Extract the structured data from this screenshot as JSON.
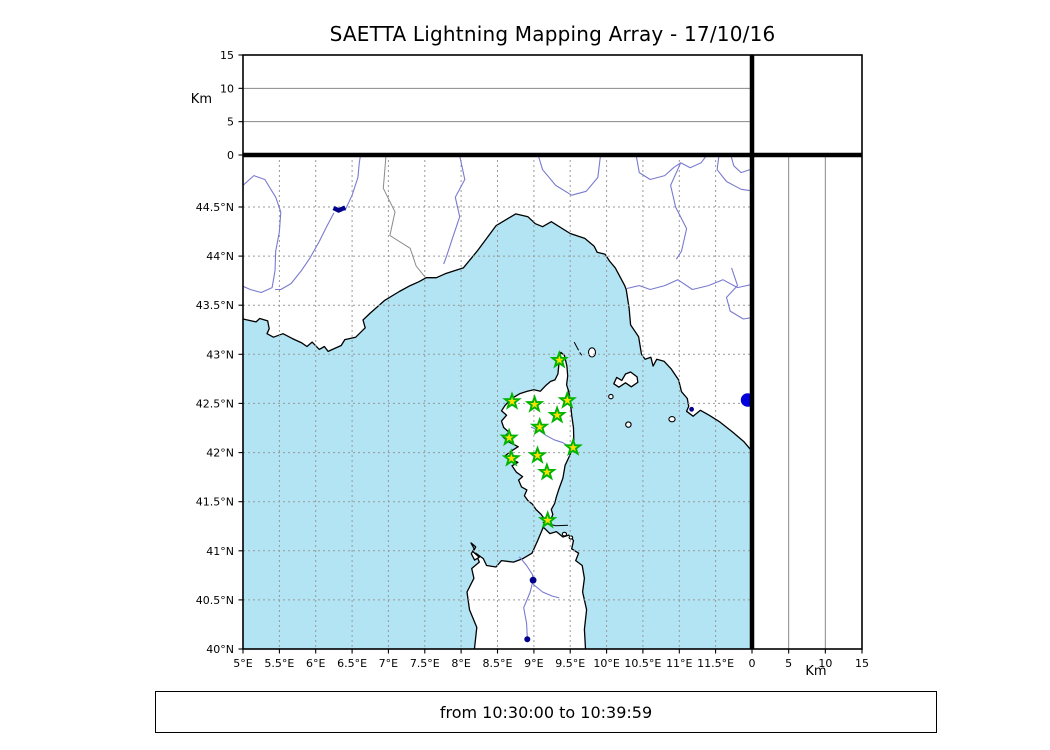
{
  "title": "SAETTA Lightning Mapping Array - 17/10/16",
  "footer": "from 10:30:00 to 10:39:59",
  "altitude_axis": {
    "label": "Km",
    "ticks": [
      0,
      5,
      10,
      15
    ],
    "gridlines": [
      5,
      10
    ],
    "max": 15
  },
  "map": {
    "lon_range": [
      5,
      12
    ],
    "lat_range": [
      40,
      45
    ],
    "lon_ticks": [
      {
        "value": 5,
        "label": "5°E"
      },
      {
        "value": 5.5,
        "label": "5.5°E"
      },
      {
        "value": 6,
        "label": "6°E"
      },
      {
        "value": 6.5,
        "label": "6.5°E"
      },
      {
        "value": 7,
        "label": "7°E"
      },
      {
        "value": 7.5,
        "label": "7.5°E"
      },
      {
        "value": 8,
        "label": "8°E"
      },
      {
        "value": 8.5,
        "label": "8.5°E"
      },
      {
        "value": 9,
        "label": "9°E"
      },
      {
        "value": 9.5,
        "label": "9.5°E"
      },
      {
        "value": 10,
        "label": "10°E"
      },
      {
        "value": 10.5,
        "label": "10.5°E"
      },
      {
        "value": 11,
        "label": "11°E"
      },
      {
        "value": 11.5,
        "label": "11.5°E"
      }
    ],
    "lat_ticks": [
      {
        "value": 40,
        "label": "40°N"
      },
      {
        "value": 40.5,
        "label": "40.5°N"
      },
      {
        "value": 41,
        "label": "41°N"
      },
      {
        "value": 41.5,
        "label": "41.5°N"
      },
      {
        "value": 42,
        "label": "42°N"
      },
      {
        "value": 42.5,
        "label": "42.5°N"
      },
      {
        "value": 43,
        "label": "43°N"
      },
      {
        "value": 43.5,
        "label": "43.5°N"
      },
      {
        "value": 44,
        "label": "44°N"
      },
      {
        "value": 44.5,
        "label": "44.5°N"
      }
    ]
  },
  "stations": [
    {
      "lon": 9.35,
      "lat": 42.94
    },
    {
      "lon": 8.7,
      "lat": 42.52
    },
    {
      "lon": 9.01,
      "lat": 42.49
    },
    {
      "lon": 9.46,
      "lat": 42.53
    },
    {
      "lon": 9.32,
      "lat": 42.38
    },
    {
      "lon": 9.08,
      "lat": 42.26
    },
    {
      "lon": 8.66,
      "lat": 42.15
    },
    {
      "lon": 8.69,
      "lat": 41.94
    },
    {
      "lon": 9.05,
      "lat": 41.97
    },
    {
      "lon": 9.54,
      "lat": 42.05
    },
    {
      "lon": 9.18,
      "lat": 41.8
    },
    {
      "lon": 9.19,
      "lat": 41.31
    }
  ],
  "colors": {
    "sea": "#b2e4f4",
    "land": "#ffffff",
    "coast": "#000000",
    "map_grid": "#999999",
    "panel_grid": "#888888",
    "river": "#7a7ad0",
    "country_border": "#8a8a8a",
    "lake": "#00008b",
    "lake_bright": "#0000dd",
    "station_fill": "#ffe000",
    "station_stroke": "#00b400",
    "frame": "#000000"
  }
}
